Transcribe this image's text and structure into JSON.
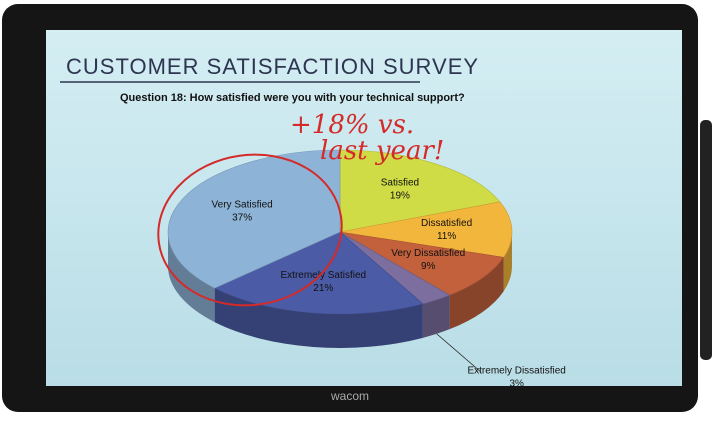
{
  "chart_data": {
    "type": "pie",
    "title": "CUSTOMER SATISFACTION SURVEY",
    "subtitle": "Question 18: How satisfied were you with your technical support?",
    "categories": [
      "Satisfied",
      "Dissatisfied",
      "Very Dissatisfied",
      "Extremely Dissatisfied",
      "Extremely Satisfied",
      "Very Satisfied"
    ],
    "values": [
      19,
      11,
      9,
      3,
      21,
      37
    ],
    "value_labels": [
      "19%",
      "11%",
      "9%",
      "3%",
      "21%",
      "37%"
    ],
    "colors": [
      "#cfdc45",
      "#f3b63c",
      "#c2613c",
      "#7c6e9e",
      "#4b5ba6",
      "#8db3d6"
    ],
    "annotations": [
      "+18% vs.",
      "last year!"
    ]
  },
  "device": {
    "brand": "wacom"
  }
}
